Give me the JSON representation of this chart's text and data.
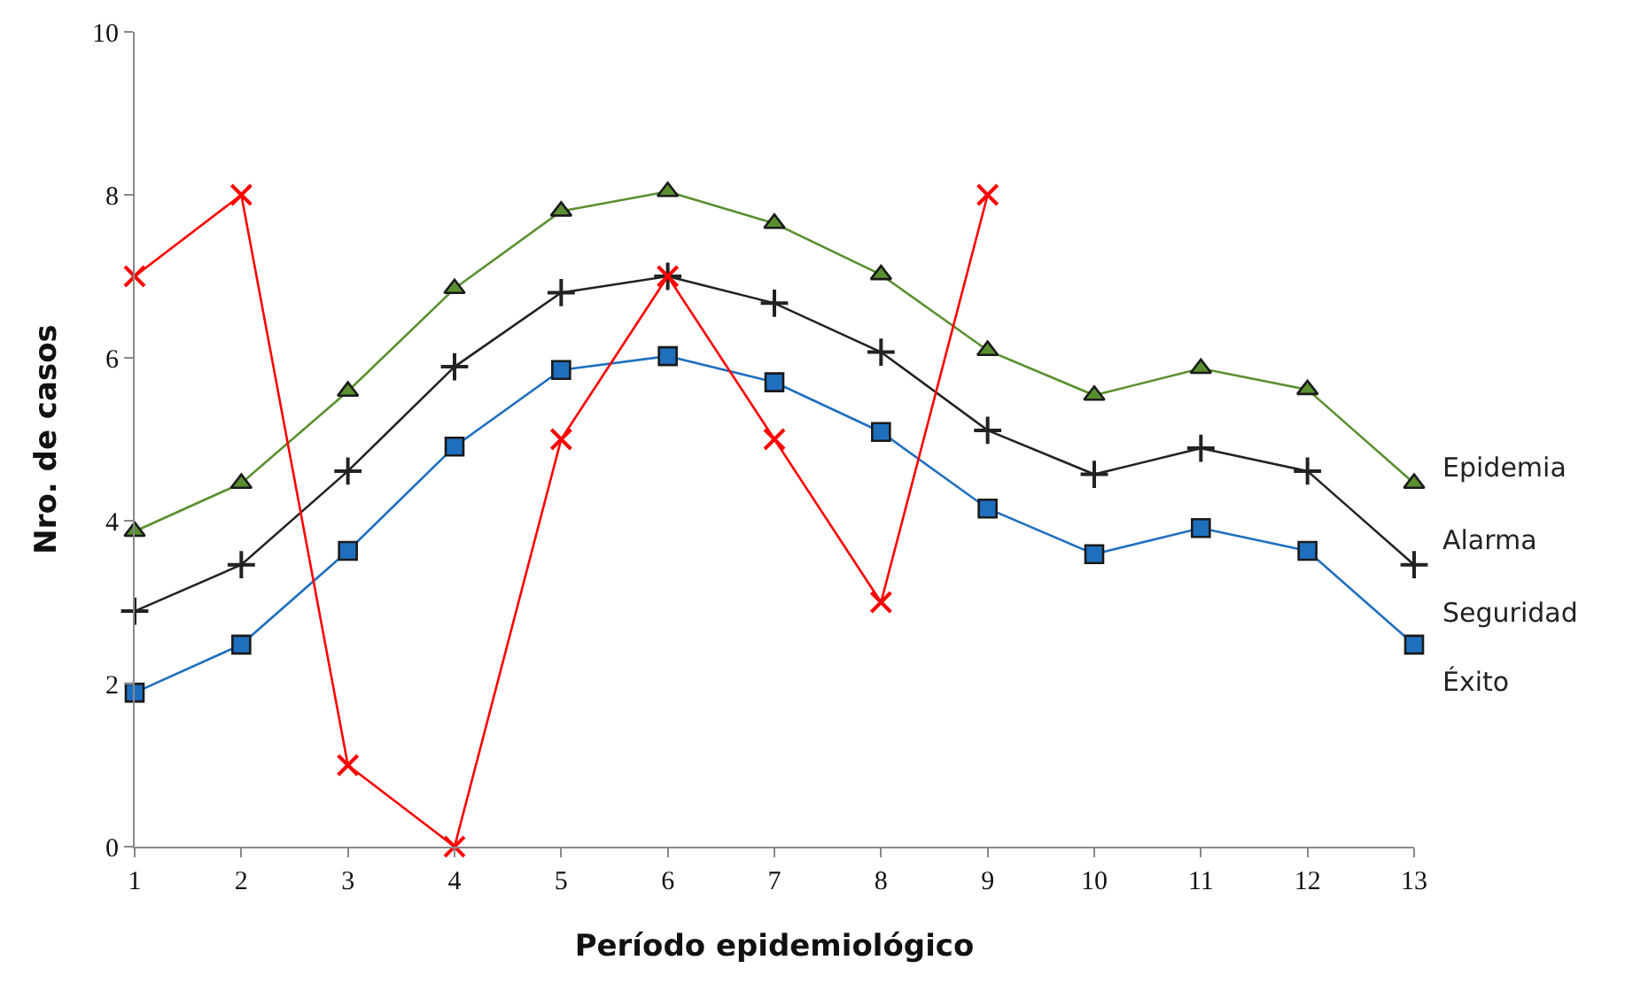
{
  "chart_data": {
    "type": "line",
    "xlabel": "Período epidemiológico",
    "ylabel": "Nro. de casos",
    "x": [
      1,
      2,
      3,
      4,
      5,
      6,
      7,
      8,
      9,
      10,
      11,
      12,
      13
    ],
    "xlim": [
      1,
      13
    ],
    "xticks": [
      1,
      2,
      3,
      4,
      5,
      6,
      7,
      8,
      9,
      10,
      11,
      12,
      13
    ],
    "ylim": [
      0,
      10
    ],
    "yticks": [
      0,
      2,
      4,
      6,
      8,
      10
    ],
    "legend": false,
    "line_style": "solid",
    "series": [
      {
        "color": "#5a8f2f",
        "marker": "triangle",
        "values": [
          3.87,
          4.46,
          5.59,
          6.85,
          7.8,
          8.04,
          7.65,
          7.02,
          6.09,
          5.54,
          5.87,
          5.61,
          4.46
        ]
      },
      {
        "color": "#222222",
        "marker": "cross",
        "values": [
          2.89,
          3.46,
          4.61,
          5.89,
          6.8,
          7.0,
          6.67,
          6.07,
          5.11,
          4.57,
          4.89,
          4.61,
          3.46
        ]
      },
      {
        "color": "#1f6fbf",
        "marker": "square",
        "values": [
          1.89,
          2.48,
          3.63,
          4.91,
          5.85,
          6.02,
          5.7,
          5.09,
          4.15,
          3.59,
          3.91,
          3.63,
          2.48
        ]
      },
      {
        "color": "#ff0000",
        "marker": "x",
        "values": [
          7,
          8,
          1,
          0,
          5,
          7,
          5,
          3,
          8,
          null,
          null,
          null,
          null
        ]
      }
    ],
    "annotations": [
      "Epidemia",
      "Alarma",
      "Seguridad",
      "Éxito"
    ]
  }
}
